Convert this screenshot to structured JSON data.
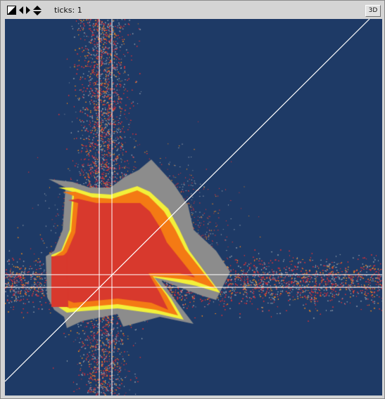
{
  "toolbar": {
    "ticks_label": "ticks: 1",
    "view_3d_label": "3D",
    "icons": [
      "zoom-box-icon",
      "pan-horizontal-icon",
      "pan-vertical-icon"
    ]
  },
  "plot": {
    "background_color": "#1e3a66",
    "crosshair_color": "#ffffff",
    "diagonal_color": "#ffffff",
    "palette": {
      "speckle_cool": "#8f9aa8",
      "speckle_warm": "#d8323a",
      "speckle_orange": "#f28a1e",
      "halo_gray": "#8c8c8c",
      "ring_yellow": "#f2f03a",
      "outer_orange": "#f47a14",
      "core_red": "#d8392d"
    }
  }
}
